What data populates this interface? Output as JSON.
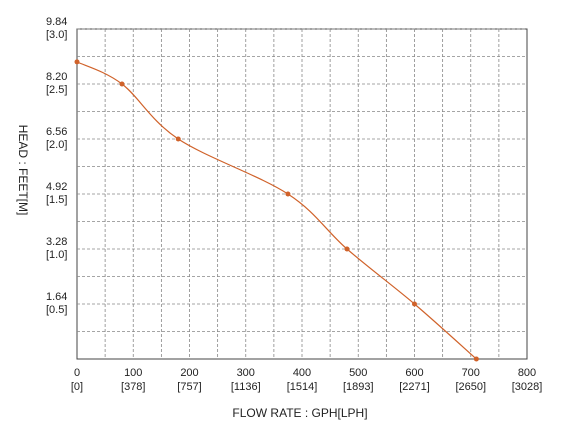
{
  "chart_data": {
    "type": "line",
    "x_label": "FLOW RATE : GPH[LPH]",
    "y_label": "HEAD : FEET[M]",
    "series": [
      {
        "color": "#d0622a",
        "x": [
          0,
          80,
          180,
          375,
          480,
          600,
          710
        ],
        "values": [
          8.86,
          8.2,
          6.56,
          4.92,
          3.28,
          1.64,
          0
        ]
      }
    ],
    "xlim": [
      0,
      800
    ],
    "xticks": [
      0,
      100,
      200,
      300,
      400,
      500,
      600,
      700,
      800
    ],
    "x_sublabels": [
      "[0]",
      "[378]",
      "[757]",
      "[1136]",
      "[1514]",
      "[1893]",
      "[2271]",
      "[2650]",
      "[3028]"
    ],
    "xminorticks": [
      50,
      150,
      250,
      350,
      450,
      550,
      650,
      750
    ],
    "ylim": [
      0,
      9.84
    ],
    "yticks": [
      1.64,
      3.28,
      4.92,
      6.56,
      {
        "value": 8.2,
        "label": "8.20"
      },
      9.84
    ],
    "y_sublabels": [
      "[0.5]",
      "[1.0]",
      "[1.5]",
      "[2.0]",
      "[2.5]",
      "[3.0]"
    ],
    "yminorticks": [
      0.82,
      2.46,
      4.1,
      5.74,
      7.38,
      9.02
    ],
    "grid": true
  }
}
